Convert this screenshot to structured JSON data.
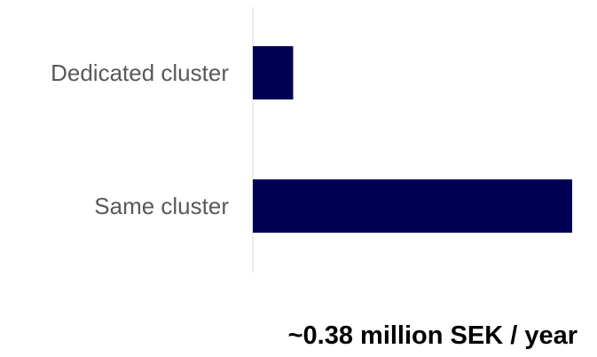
{
  "chart_data": {
    "type": "bar",
    "orientation": "horizontal",
    "categories": [
      "Dedicated cluster",
      "Same cluster"
    ],
    "values": [
      0.048,
      0.38
    ],
    "xlim": [
      0,
      0.38
    ],
    "grid": false,
    "bar_color": "#000055",
    "axis_color": "#d9d9d9"
  },
  "summary": {
    "label": "~0.38 million SEK / year"
  }
}
